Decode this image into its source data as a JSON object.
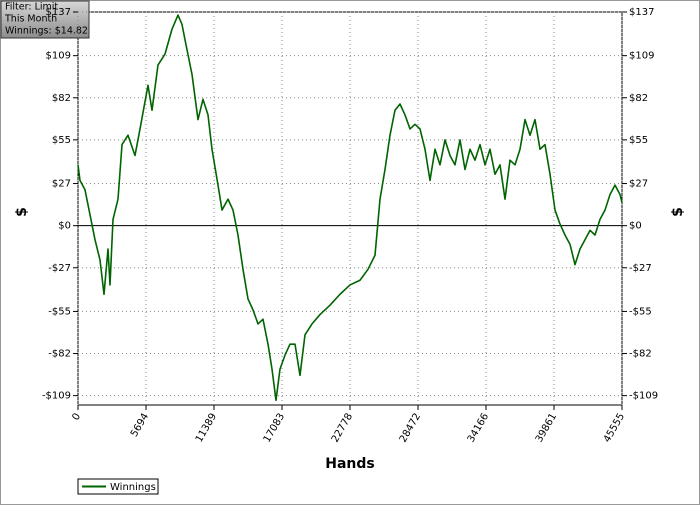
{
  "chart_data": {
    "type": "line",
    "info": [
      "Filter: Limit",
      "This Month",
      "Winnings: $14.82"
    ],
    "xlabel": "Hands",
    "ylabel": "$",
    "y2label": "$",
    "xlim": [
      0,
      45555
    ],
    "xticks": [
      0,
      5694,
      11389,
      17083,
      22778,
      28472,
      34166,
      39861,
      45555
    ],
    "ylim": [
      -115,
      137
    ],
    "yticks": [
      {
        "value": -109,
        "label": "-$109"
      },
      {
        "value": -82,
        "label": "-$82"
      },
      {
        "value": -55,
        "label": "-$55"
      },
      {
        "value": -27,
        "label": "-$27"
      },
      {
        "value": 0,
        "label": "$0"
      },
      {
        "value": 27,
        "label": "$27"
      },
      {
        "value": 55,
        "label": "$55"
      },
      {
        "value": 82,
        "label": "$82"
      },
      {
        "value": 109,
        "label": "$109"
      },
      {
        "value": 137,
        "label": "$137"
      }
    ],
    "grid": true,
    "zero_line": true,
    "legend": "bottom-left",
    "x": [
      0,
      167,
      586,
      1005,
      1424,
      1842,
      2177,
      2512,
      2680,
      2931,
      3350,
      3685,
      4187,
      4773,
      5192,
      5862,
      6197,
      6699,
      7285,
      7872,
      8374,
      8709,
      9044,
      9546,
      10049,
      10468,
      10887,
      11221,
      11724,
      12059,
      12561,
      12980,
      13398,
      13817,
      14236,
      14655,
      15073,
      15492,
      15911,
      16246,
      16581,
      16915,
      17334,
      17753,
      18172,
      18590,
      19009,
      19595,
      20265,
      21102,
      21939,
      22777,
      23614,
      24285,
      24871,
      25290,
      25708,
      26127,
      26546,
      26964,
      27383,
      27802,
      28221,
      28639,
      29058,
      29477,
      29896,
      30314,
      30733,
      31152,
      31570,
      31989,
      32408,
      32827,
      33245,
      33664,
      34083,
      34502,
      34920,
      35339,
      35758,
      36176,
      36595,
      37014,
      37433,
      37851,
      38270,
      38689,
      39107,
      39526,
      39945,
      40363,
      40782,
      41201,
      41620,
      42038,
      42457,
      42876,
      43294,
      43713,
      44132,
      44551,
      44969,
      45388,
      45555
    ],
    "series": [
      {
        "name": "Winnings",
        "color": "#006400",
        "values": [
          39,
          29,
          23,
          7,
          -9,
          -22,
          -44,
          -15,
          -38,
          4,
          17,
          52,
          58,
          45,
          62,
          90,
          74,
          103,
          110,
          126,
          135,
          129,
          116,
          97,
          68,
          81,
          71,
          49,
          26,
          10,
          17,
          10,
          -6,
          -28,
          -47,
          -54,
          -63,
          -60,
          -76,
          -92,
          -112,
          -92,
          -83,
          -76,
          -76,
          -96,
          -70,
          -63,
          -57,
          -51,
          -44,
          -38,
          -35,
          -28,
          -19,
          17,
          36,
          58,
          74,
          78,
          71,
          62,
          65,
          62,
          49,
          29,
          49,
          39,
          55,
          45,
          39,
          55,
          36,
          49,
          42,
          52,
          39,
          49,
          33,
          39,
          17,
          42,
          39,
          49,
          68,
          58,
          68,
          49,
          52,
          33,
          10,
          1,
          -6,
          -12,
          -25,
          -15,
          -9,
          -3,
          -6,
          4,
          10,
          20,
          26,
          20,
          14.82
        ]
      }
    ]
  }
}
